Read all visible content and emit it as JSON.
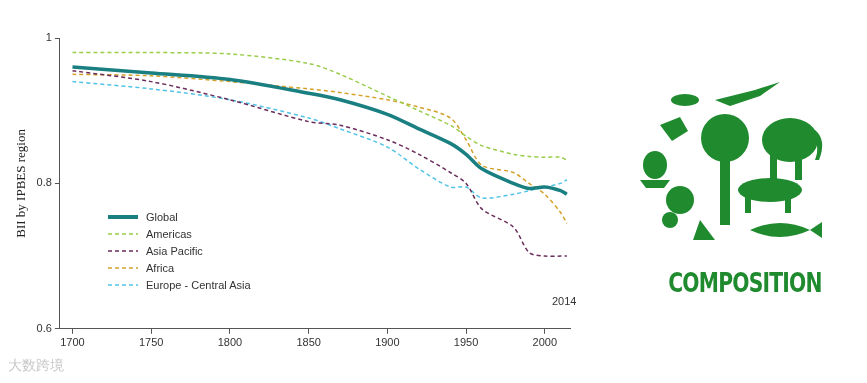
{
  "chart_data": {
    "type": "line",
    "y_label": "BII by IPBES region",
    "x": [
      1700,
      1750,
      1800,
      1850,
      1870,
      1900,
      1920,
      1940,
      1950,
      1960,
      1980,
      1990,
      2000,
      2010,
      2014
    ],
    "series": [
      {
        "name": "Global",
        "color": "#1a7f80",
        "line_style": "solid",
        "values": [
          0.96,
          0.952,
          0.943,
          0.924,
          0.915,
          0.895,
          0.875,
          0.855,
          0.84,
          0.82,
          0.8,
          0.793,
          0.795,
          0.79,
          0.785
        ]
      },
      {
        "name": "Americas",
        "color": "#9acd4a",
        "line_style": "dashed",
        "values": [
          0.98,
          0.98,
          0.978,
          0.965,
          0.95,
          0.92,
          0.9,
          0.88,
          0.865,
          0.852,
          0.84,
          0.837,
          0.836,
          0.836,
          0.832
        ]
      },
      {
        "name": "Asia Pacific",
        "color": "#6b2d5c",
        "line_style": "dashed",
        "values": [
          0.955,
          0.94,
          0.915,
          0.885,
          0.88,
          0.86,
          0.84,
          0.815,
          0.8,
          0.765,
          0.74,
          0.705,
          0.7,
          0.7,
          0.7
        ]
      },
      {
        "name": "Africa",
        "color": "#d4a12a",
        "line_style": "dashed",
        "values": [
          0.95,
          0.948,
          0.94,
          0.93,
          0.925,
          0.915,
          0.905,
          0.89,
          0.86,
          0.825,
          0.815,
          0.8,
          0.785,
          0.76,
          0.745
        ]
      },
      {
        "name": "Europe - Central Asia",
        "color": "#4fc3e8",
        "line_style": "dashed",
        "values": [
          0.94,
          0.93,
          0.915,
          0.89,
          0.875,
          0.85,
          0.82,
          0.795,
          0.795,
          0.78,
          0.785,
          0.79,
          0.795,
          0.8,
          0.805
        ]
      }
    ],
    "xlim": [
      1692,
      2016
    ],
    "xticks": [
      1700,
      1750,
      1800,
      1850,
      1900,
      1950,
      2000
    ],
    "ylim": [
      0.6,
      1
    ],
    "yticks": [
      0.6,
      0.8,
      1
    ],
    "grid": false,
    "legend": "lower left",
    "annotations": [
      "2014",
      "COMPOSITION",
      "大数跨境"
    ]
  }
}
